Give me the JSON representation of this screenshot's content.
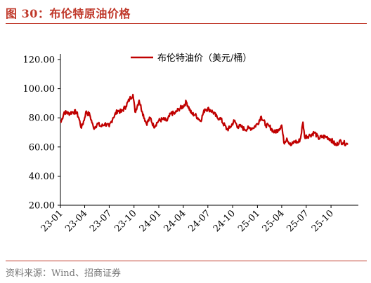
{
  "title": "图 30：布伦特原油价格",
  "source": "资料来源：Wind、招商证券",
  "colors": {
    "accent": "#c0392b",
    "line": "#c00000",
    "axis": "#000000",
    "source_text": "#777777"
  },
  "chart_data": {
    "type": "line",
    "title": "",
    "xlabel": "",
    "ylabel": "",
    "ylim": [
      20,
      120
    ],
    "yticks": [
      "20.00",
      "40.00",
      "60.00",
      "80.00",
      "100.00",
      "120.00"
    ],
    "xticks": [
      "23-01",
      "23-04",
      "23-07",
      "23-10",
      "24-01",
      "24-04",
      "24-07",
      "24-10",
      "25-01",
      "25-04",
      "25-07",
      "25-10"
    ],
    "grid": false,
    "legend": "top-center",
    "series": [
      {
        "name": "布伦特油价（美元/桶）",
        "x": [
          "2023-01-03",
          "2023-01-15",
          "2023-02-01",
          "2023-02-15",
          "2023-03-01",
          "2023-03-10",
          "2023-03-20",
          "2023-04-01",
          "2023-04-05",
          "2023-04-20",
          "2023-05-04",
          "2023-05-20",
          "2023-06-01",
          "2023-06-15",
          "2023-07-01",
          "2023-07-15",
          "2023-08-01",
          "2023-08-15",
          "2023-09-01",
          "2023-09-15",
          "2023-09-27",
          "2023-10-05",
          "2023-10-20",
          "2023-11-01",
          "2023-11-16",
          "2023-12-01",
          "2023-12-13",
          "2024-01-01",
          "2024-01-15",
          "2024-02-01",
          "2024-02-15",
          "2024-03-01",
          "2024-03-15",
          "2024-04-01",
          "2024-04-12",
          "2024-05-01",
          "2024-05-15",
          "2024-06-04",
          "2024-06-20",
          "2024-07-05",
          "2024-07-20",
          "2024-08-05",
          "2024-08-15",
          "2024-09-10",
          "2024-09-20",
          "2024-10-07",
          "2024-10-20",
          "2024-11-01",
          "2024-11-15",
          "2024-12-01",
          "2024-12-15",
          "2025-01-02",
          "2025-01-15",
          "2025-02-01",
          "2025-02-15",
          "2025-03-05",
          "2025-03-20",
          "2025-04-01",
          "2025-04-09",
          "2025-04-20",
          "2025-05-05",
          "2025-05-20",
          "2025-06-01",
          "2025-06-10",
          "2025-06-19",
          "2025-06-25",
          "2025-07-15",
          "2025-08-01",
          "2025-08-15",
          "2025-09-01",
          "2025-09-15",
          "2025-10-01",
          "2025-10-20",
          "2025-11-01",
          "2025-11-15",
          "2025-12-01"
        ],
        "y": [
          77,
          84,
          83,
          84,
          84,
          80,
          73,
          80,
          84,
          82,
          73,
          76,
          74,
          76,
          74,
          80,
          85,
          84,
          88,
          93,
          96,
          84,
          92,
          84,
          76,
          80,
          74,
          78,
          79,
          78,
          83,
          83,
          86,
          88,
          91,
          83,
          82,
          78,
          86,
          86,
          84,
          80,
          80,
          72,
          73,
          78,
          74,
          74,
          72,
          73,
          73,
          76,
          81,
          75,
          74,
          70,
          72,
          75,
          63,
          66,
          61,
          64,
          63,
          66,
          77,
          67,
          68,
          70,
          66,
          67,
          67,
          65,
          61,
          64,
          63,
          62
        ]
      }
    ]
  }
}
